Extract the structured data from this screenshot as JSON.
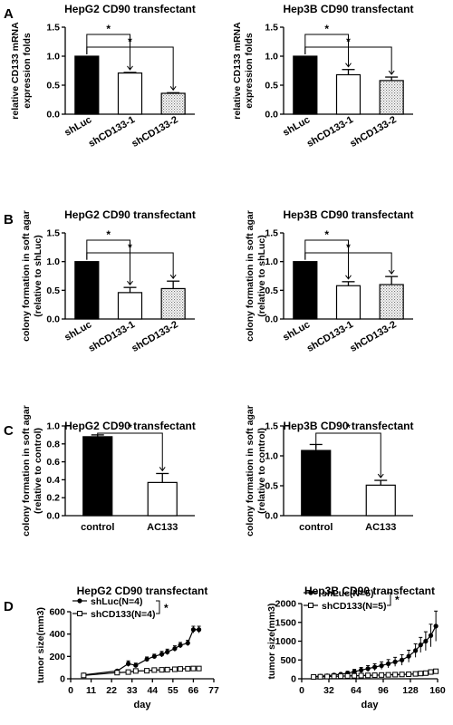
{
  "chart_data": [
    {
      "panel": "A",
      "type": "bar",
      "title": "HepG2 CD90 transfectant",
      "ylabel": [
        "relative CD133 mRNA",
        "expression folds"
      ],
      "xlabel": "",
      "ylim": [
        0,
        1.5
      ],
      "yticks": [
        "0.0",
        "0.5",
        "1.0",
        "1.5"
      ],
      "categories": [
        "shLuc",
        "shCD133-1",
        "shCD133-2"
      ],
      "values": [
        1.0,
        0.71,
        0.36
      ],
      "errors": [
        0,
        0.01,
        0.01
      ],
      "fills": [
        "black",
        "white",
        "dots"
      ],
      "rotate_labels": true,
      "significance": [
        {
          "from": 0,
          "to": 1,
          "label": "*"
        },
        {
          "from": 0,
          "to": 2,
          "label": "*"
        }
      ]
    },
    {
      "panel": "",
      "type": "bar",
      "title": "Hep3B CD90 transfectant",
      "ylabel": [
        "relative CD133 mRNA",
        "expression folds"
      ],
      "xlabel": "",
      "ylim": [
        0,
        1.5
      ],
      "yticks": [
        "0.0",
        "0.5",
        "1.0",
        "1.5"
      ],
      "categories": [
        "shLuc",
        "shCD133-1",
        "shCD133-2"
      ],
      "values": [
        1.0,
        0.68,
        0.58
      ],
      "errors": [
        0,
        0.09,
        0.06
      ],
      "fills": [
        "black",
        "white",
        "dots"
      ],
      "rotate_labels": true,
      "significance": [
        {
          "from": 0,
          "to": 1,
          "label": "*"
        },
        {
          "from": 0,
          "to": 2,
          "label": "*"
        }
      ]
    },
    {
      "panel": "B",
      "type": "bar",
      "title": "HepG2 CD90 transfectant",
      "ylabel": [
        "colony formation in soft agar",
        "(relative to shLuc)"
      ],
      "xlabel": "",
      "ylim": [
        0,
        1.5
      ],
      "yticks": [
        "0.0",
        "0.5",
        "1.0",
        "1.5"
      ],
      "categories": [
        "shLuc",
        "shCD133-1",
        "shCD133-2"
      ],
      "values": [
        1.0,
        0.46,
        0.53
      ],
      "errors": [
        0,
        0.09,
        0.13
      ],
      "fills": [
        "black",
        "white",
        "dots"
      ],
      "rotate_labels": true,
      "significance": [
        {
          "from": 0,
          "to": 1,
          "label": "*"
        },
        {
          "from": 0,
          "to": 2,
          "label": "*"
        }
      ]
    },
    {
      "panel": "",
      "type": "bar",
      "title": "Hep3B CD90 transfectant",
      "ylabel": [
        "colony formation in soft agar",
        "(relative to shLuc)"
      ],
      "xlabel": "",
      "ylim": [
        0,
        1.5
      ],
      "yticks": [
        "0.0",
        "0.5",
        "1.0",
        "1.5"
      ],
      "categories": [
        "shLuc",
        "shCD133-1",
        "shCD133-2"
      ],
      "values": [
        1.0,
        0.58,
        0.6
      ],
      "errors": [
        0,
        0.07,
        0.14
      ],
      "fills": [
        "black",
        "white",
        "dots"
      ],
      "rotate_labels": true,
      "significance": [
        {
          "from": 0,
          "to": 1,
          "label": "*"
        },
        {
          "from": 0,
          "to": 2,
          "label": "*"
        }
      ]
    },
    {
      "panel": "C",
      "type": "bar",
      "title": "HepG2 CD90 transfectant",
      "ylabel": [
        "colony formation in soft agar",
        "(relative to control)"
      ],
      "xlabel": "",
      "ylim": [
        0,
        1.0
      ],
      "yticks": [
        "0.0",
        "0.2",
        "0.4",
        "0.6",
        "0.8",
        "1.0"
      ],
      "categories": [
        "control",
        "AC133"
      ],
      "values": [
        0.88,
        0.37
      ],
      "errors": [
        0.02,
        0.1
      ],
      "fills": [
        "black",
        "white"
      ],
      "rotate_labels": false,
      "significance": [
        {
          "from": 0,
          "to": 1,
          "label": "*"
        }
      ]
    },
    {
      "panel": "",
      "type": "bar",
      "title": "Hep3B CD90 transfectant",
      "ylabel": [
        "colony formation in soft agar",
        "(relative to control)"
      ],
      "xlabel": "",
      "ylim": [
        0,
        1.5
      ],
      "yticks": [
        "0.0",
        "0.5",
        "1.0",
        "1.5"
      ],
      "categories": [
        "control",
        "AC133"
      ],
      "values": [
        1.09,
        0.51
      ],
      "errors": [
        0.1,
        0.08
      ],
      "fills": [
        "black",
        "white"
      ],
      "rotate_labels": false,
      "significance": [
        {
          "from": 0,
          "to": 1,
          "label": "*"
        }
      ]
    },
    {
      "panel": "D",
      "type": "line",
      "title": "HepG2 CD90 transfectant",
      "ylabel": [
        "tumor size(mm3)"
      ],
      "xlabel": "day",
      "xlim": [
        0,
        77
      ],
      "ylim": [
        0,
        600
      ],
      "xticks": [
        0,
        11,
        22,
        33,
        44,
        55,
        66,
        77
      ],
      "yticks": [
        0,
        200,
        400,
        600
      ],
      "legend": "top-left",
      "significance_label": "*",
      "series": [
        {
          "name": "shLuc(N=4)",
          "marker": "filled-circle",
          "x": [
            7,
            25,
            31,
            35,
            41,
            45,
            49,
            52,
            56,
            59,
            63,
            66,
            69
          ],
          "y": [
            35,
            70,
            135,
            120,
            175,
            200,
            220,
            240,
            270,
            300,
            320,
            440,
            440
          ],
          "err": [
            5,
            10,
            25,
            20,
            20,
            20,
            25,
            25,
            25,
            25,
            25,
            30,
            30
          ]
        },
        {
          "name": "shCD133(N=4)",
          "marker": "open-square",
          "x": [
            7,
            25,
            31,
            35,
            41,
            45,
            49,
            52,
            56,
            59,
            63,
            66,
            69
          ],
          "y": [
            30,
            55,
            60,
            70,
            72,
            78,
            80,
            82,
            85,
            88,
            90,
            92,
            92
          ],
          "err": [
            5,
            8,
            10,
            10,
            10,
            10,
            10,
            10,
            10,
            10,
            10,
            12,
            12
          ]
        }
      ]
    },
    {
      "panel": "",
      "type": "line",
      "title": "Hep3B CD90 transfectant",
      "ylabel": [
        "tumor size(mm3)"
      ],
      "xlabel": "day",
      "xlim": [
        0,
        160
      ],
      "ylim": [
        0,
        2000
      ],
      "xticks": [
        0,
        32,
        64,
        96,
        128,
        160
      ],
      "yticks": [
        0,
        500,
        1000,
        1500,
        2000
      ],
      "legend": "top-left",
      "significance_label": "*",
      "series": [
        {
          "name": "shLuc(N=5)",
          "marker": "filled-circle",
          "x": [
            14,
            22,
            30,
            38,
            46,
            54,
            62,
            70,
            78,
            86,
            94,
            102,
            110,
            118,
            126,
            134,
            140,
            146,
            152,
            158
          ],
          "y": [
            60,
            70,
            80,
            100,
            120,
            150,
            190,
            230,
            270,
            310,
            350,
            400,
            450,
            500,
            600,
            750,
            900,
            1000,
            1150,
            1400
          ],
          "err": [
            20,
            20,
            30,
            40,
            40,
            50,
            60,
            70,
            80,
            90,
            100,
            110,
            120,
            140,
            160,
            180,
            200,
            250,
            300,
            400
          ]
        },
        {
          "name": "shCD133(N=5)",
          "marker": "open-square",
          "x": [
            14,
            22,
            30,
            38,
            46,
            54,
            62,
            70,
            78,
            86,
            94,
            102,
            110,
            118,
            126,
            134,
            140,
            146,
            152,
            158
          ],
          "y": [
            50,
            55,
            60,
            65,
            70,
            75,
            80,
            85,
            90,
            95,
            100,
            105,
            110,
            115,
            120,
            130,
            140,
            150,
            180,
            200
          ],
          "err": [
            10,
            10,
            10,
            10,
            10,
            10,
            10,
            10,
            10,
            10,
            10,
            10,
            10,
            10,
            15,
            15,
            20,
            20,
            25,
            30
          ]
        }
      ]
    }
  ]
}
